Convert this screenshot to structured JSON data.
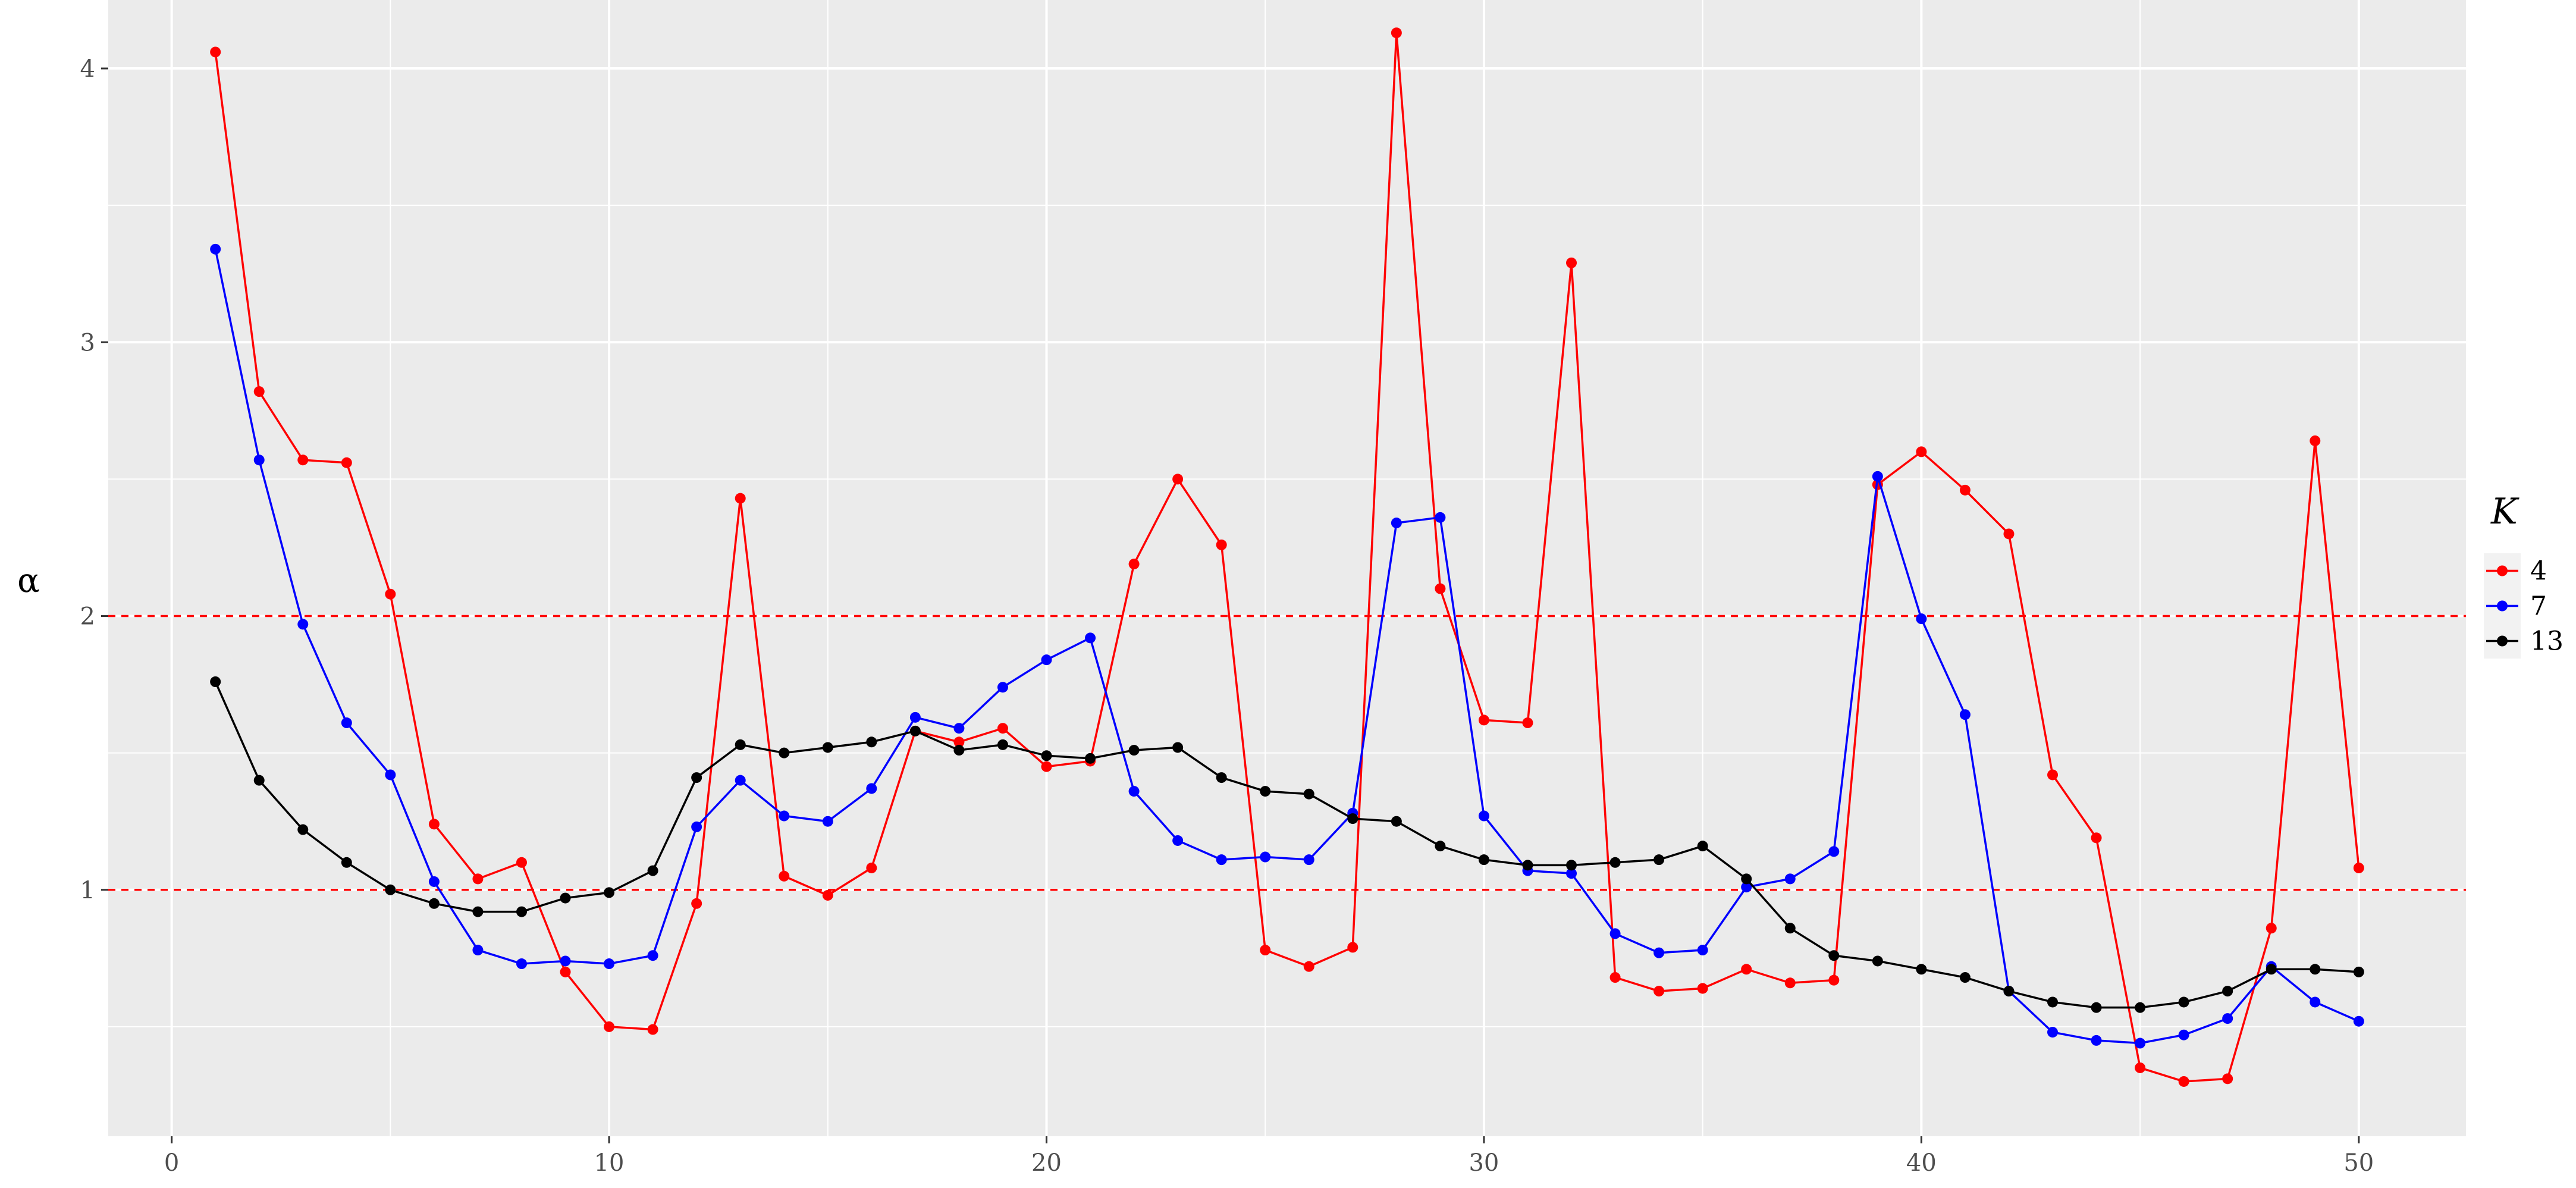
{
  "chart_data": {
    "type": "line",
    "xlabel": "",
    "ylabel": "α",
    "xlim": [
      -1.45,
      52.45
    ],
    "ylim": [
      0.1,
      4.25
    ],
    "x_ticks": [
      0,
      10,
      20,
      30,
      40,
      50
    ],
    "y_ticks": [
      1,
      2,
      3,
      4
    ],
    "grid": true,
    "background": "#ebebeb",
    "legend": {
      "title": "K",
      "position": "right"
    },
    "reference_lines": [
      {
        "y": 1,
        "color": "#ff0000",
        "style": "dashed"
      },
      {
        "y": 2,
        "color": "#ff0000",
        "style": "dashed"
      }
    ],
    "x": [
      1,
      2,
      3,
      4,
      5,
      6,
      7,
      8,
      9,
      10,
      11,
      12,
      13,
      14,
      15,
      16,
      17,
      18,
      19,
      20,
      21,
      22,
      23,
      24,
      25,
      26,
      27,
      28,
      29,
      30,
      31,
      32,
      33,
      34,
      35,
      36,
      37,
      38,
      39,
      40,
      41,
      42,
      43,
      44,
      45,
      46,
      47,
      48,
      49,
      50
    ],
    "series": [
      {
        "name": "4",
        "color": "#ff0000",
        "values": [
          4.06,
          2.82,
          2.57,
          2.56,
          2.08,
          1.24,
          1.04,
          1.1,
          0.7,
          0.5,
          0.49,
          0.95,
          2.43,
          1.05,
          0.98,
          1.08,
          1.58,
          1.54,
          1.59,
          1.45,
          1.47,
          2.19,
          2.5,
          2.26,
          0.78,
          0.72,
          0.79,
          4.13,
          2.1,
          1.62,
          1.61,
          3.29,
          0.68,
          0.63,
          0.64,
          0.71,
          0.66,
          0.67,
          2.48,
          2.6,
          2.46,
          2.3,
          1.42,
          1.19,
          0.35,
          0.3,
          0.31,
          0.86,
          2.64,
          1.08
        ]
      },
      {
        "name": "7",
        "color": "#0000ff",
        "values": [
          3.34,
          2.57,
          1.97,
          1.61,
          1.42,
          1.03,
          0.78,
          0.73,
          0.74,
          0.73,
          0.76,
          1.23,
          1.4,
          1.27,
          1.25,
          1.37,
          1.63,
          1.59,
          1.74,
          1.84,
          1.92,
          1.36,
          1.18,
          1.11,
          1.12,
          1.11,
          1.28,
          2.34,
          2.36,
          1.27,
          1.07,
          1.06,
          0.84,
          0.77,
          0.78,
          1.01,
          1.04,
          1.14,
          2.51,
          1.99,
          1.64,
          0.63,
          0.48,
          0.45,
          0.44,
          0.47,
          0.53,
          0.72,
          0.59,
          0.52
        ]
      },
      {
        "name": "13",
        "color": "#000000",
        "values": [
          1.76,
          1.4,
          1.22,
          1.1,
          1.0,
          0.95,
          0.92,
          0.92,
          0.97,
          0.99,
          1.07,
          1.41,
          1.53,
          1.5,
          1.52,
          1.54,
          1.58,
          1.51,
          1.53,
          1.49,
          1.48,
          1.51,
          1.52,
          1.41,
          1.36,
          1.35,
          1.26,
          1.25,
          1.16,
          1.11,
          1.09,
          1.09,
          1.1,
          1.11,
          1.16,
          1.04,
          0.86,
          0.76,
          0.74,
          0.71,
          0.68,
          0.63,
          0.59,
          0.57,
          0.57,
          0.59,
          0.63,
          0.71,
          0.71,
          0.7
        ]
      }
    ]
  }
}
